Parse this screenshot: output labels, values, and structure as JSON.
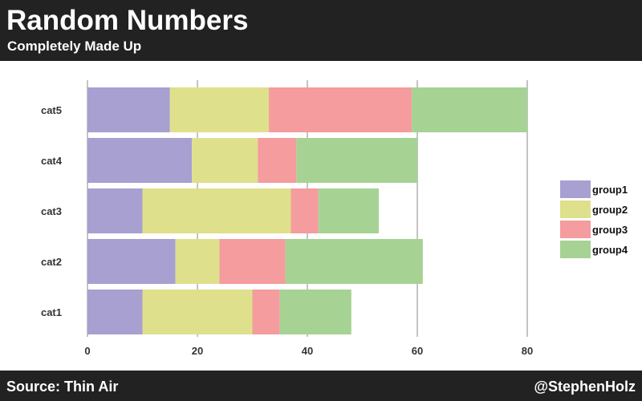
{
  "header": {
    "title": "Random Numbers",
    "subtitle": "Completely Made Up"
  },
  "footer": {
    "source": "Source: Thin Air",
    "handle": "@StephenHolz"
  },
  "chart_data": {
    "type": "bar",
    "orientation": "horizontal",
    "stacked": true,
    "title": "Random Numbers",
    "subtitle": "Completely Made Up",
    "xlabel": "",
    "ylabel": "",
    "categories": [
      "cat1",
      "cat2",
      "cat3",
      "cat4",
      "cat5"
    ],
    "xlim": [
      0,
      80
    ],
    "xticks": [
      0,
      20,
      40,
      60,
      80
    ],
    "grid": true,
    "legend_position": "right",
    "series": [
      {
        "name": "group1",
        "color": "#a7a0d1",
        "values": [
          10,
          16,
          10,
          19,
          15
        ]
      },
      {
        "name": "group2",
        "color": "#dfe08b",
        "values": [
          20,
          8,
          27,
          12,
          18
        ]
      },
      {
        "name": "group3",
        "color": "#f49c9e",
        "values": [
          5,
          12,
          5,
          7,
          26
        ]
      },
      {
        "name": "group4",
        "color": "#a6d394",
        "values": [
          13,
          25,
          11,
          22,
          21
        ]
      }
    ]
  }
}
